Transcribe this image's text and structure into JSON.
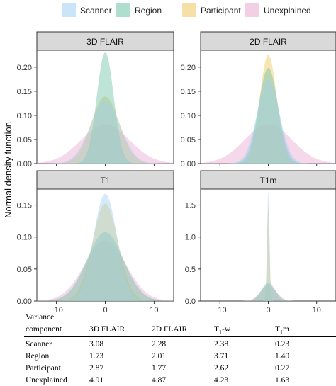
{
  "colors": {
    "Scanner": "#9fd0f0",
    "Region": "#6cc3a6",
    "Participant": "#f0c65e",
    "Unexplained": "#e9a8ce"
  },
  "chart_data": {
    "type": "area",
    "legend": {
      "placement": "top",
      "entries": [
        "Scanner",
        "Region",
        "Participant",
        "Unexplained"
      ]
    },
    "ylabel": "Normal density function",
    "xlabel": "",
    "x_ticks": [
      -10,
      0,
      10
    ],
    "xlim": [
      -14,
      14
    ],
    "grid": false,
    "panels": [
      {
        "title": "3D FLAIR",
        "ylim": [
          0,
          0.235
        ],
        "y_ticks": [
          "0.00",
          "0.05",
          "0.10",
          "0.15",
          "0.20"
        ],
        "y_tick_values": [
          0,
          0.05,
          0.1,
          0.15,
          0.2
        ],
        "series": [
          {
            "name": "Scanner",
            "sd": 3.08
          },
          {
            "name": "Region",
            "sd": 1.73
          },
          {
            "name": "Participant",
            "sd": 2.87
          },
          {
            "name": "Unexplained",
            "sd": 4.91
          }
        ]
      },
      {
        "title": "2D FLAIR",
        "ylim": [
          0,
          0.235
        ],
        "y_ticks": [
          "0.00",
          "0.05",
          "0.10",
          "0.15",
          "0.20"
        ],
        "y_tick_values": [
          0,
          0.05,
          0.1,
          0.15,
          0.2
        ],
        "series": [
          {
            "name": "Scanner",
            "sd": 2.28
          },
          {
            "name": "Region",
            "sd": 2.01
          },
          {
            "name": "Participant",
            "sd": 1.77
          },
          {
            "name": "Unexplained",
            "sd": 4.87
          }
        ]
      },
      {
        "title": "T1",
        "ylim": [
          0,
          0.175
        ],
        "y_ticks": [
          "0.00",
          "0.05",
          "0.10",
          "0.15"
        ],
        "y_tick_values": [
          0,
          0.05,
          0.1,
          0.15
        ],
        "series": [
          {
            "name": "Scanner",
            "sd": 2.38
          },
          {
            "name": "Region",
            "sd": 3.71
          },
          {
            "name": "Participant",
            "sd": 2.62
          },
          {
            "name": "Unexplained",
            "sd": 4.23
          }
        ]
      },
      {
        "title": "T1m",
        "ylim": [
          0,
          1.75
        ],
        "y_ticks": [
          "0.0",
          "0.5",
          "1.0",
          "1.5"
        ],
        "y_tick_values": [
          0,
          0.5,
          1.0,
          1.5
        ],
        "series": [
          {
            "name": "Scanner",
            "sd": 0.23
          },
          {
            "name": "Region",
            "sd": 1.4
          },
          {
            "name": "Participant",
            "sd": 0.27
          },
          {
            "name": "Unexplained",
            "sd": 1.63
          }
        ]
      }
    ]
  },
  "table": {
    "header_line1": "Variance",
    "header_line2": "component",
    "columns": [
      "3D FLAIR",
      "2D FLAIR",
      "T",
      "m"
    ],
    "col3_base": "T",
    "col3_sub": "1",
    "col3_suffix": "-w",
    "col4_base": "T",
    "col4_sub": "1",
    "col4_suffix": "m",
    "rows": [
      {
        "label": "Scanner",
        "values": [
          "3.08",
          "2.28",
          "2.38",
          "0.23"
        ]
      },
      {
        "label": "Region",
        "values": [
          "1.73",
          "2.01",
          "3.71",
          "1.40"
        ]
      },
      {
        "label": "Participant",
        "values": [
          "2.87",
          "1.77",
          "2.62",
          "0.27"
        ]
      },
      {
        "label": "Unexplained",
        "values": [
          "4.91",
          "4.87",
          "4.23",
          "1.63"
        ]
      }
    ]
  }
}
